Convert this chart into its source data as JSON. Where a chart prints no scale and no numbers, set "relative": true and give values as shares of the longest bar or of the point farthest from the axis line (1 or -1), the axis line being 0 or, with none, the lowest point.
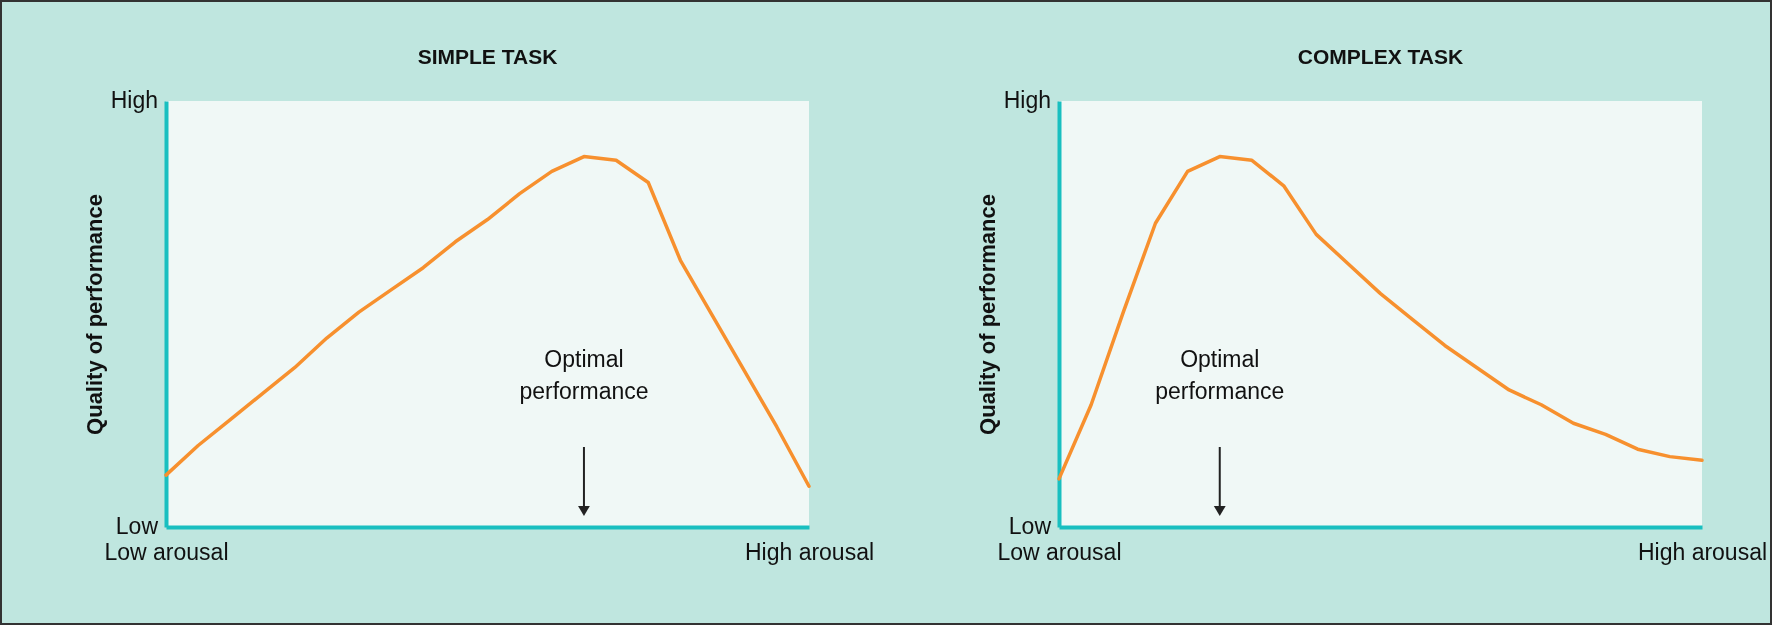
{
  "chart_data": [
    {
      "type": "line",
      "title": "SIMPLE TASK",
      "ylabel": "Quality of performance",
      "relative": true,
      "grid": false,
      "categories": [
        "Low arousal",
        null,
        null,
        null,
        null,
        null,
        null,
        null,
        null,
        null,
        null,
        null,
        null,
        null,
        null,
        null,
        null,
        null,
        null,
        null,
        "High arousal"
      ],
      "series": [
        {
          "color": "#f7902e",
          "values": [
            0.14,
            0.22,
            0.29,
            0.36,
            0.43,
            0.51,
            0.58,
            0.64,
            0.7,
            0.77,
            0.83,
            0.9,
            0.96,
            1,
            0.99,
            0.93,
            0.72,
            0.57,
            0.42,
            0.27,
            0.11
          ]
        }
      ],
      "annotations": [
        "High",
        "Low",
        "Optimal performance"
      ]
    },
    {
      "type": "line",
      "title": "COMPLEX TASK",
      "ylabel": "Quality of performance",
      "relative": true,
      "grid": false,
      "categories": [
        "Low arousal",
        null,
        null,
        null,
        null,
        null,
        null,
        null,
        null,
        null,
        null,
        null,
        null,
        null,
        null,
        null,
        null,
        null,
        null,
        null,
        "High arousal"
      ],
      "series": [
        {
          "color": "#f7902e",
          "values": [
            0.13,
            0.33,
            0.58,
            0.82,
            0.96,
            1,
            0.99,
            0.92,
            0.79,
            0.71,
            0.63,
            0.56,
            0.49,
            0.43,
            0.37,
            0.33,
            0.28,
            0.25,
            0.21,
            0.19,
            0.18
          ]
        }
      ],
      "annotations": [
        "High",
        "Low",
        "Optimal performance"
      ]
    }
  ]
}
